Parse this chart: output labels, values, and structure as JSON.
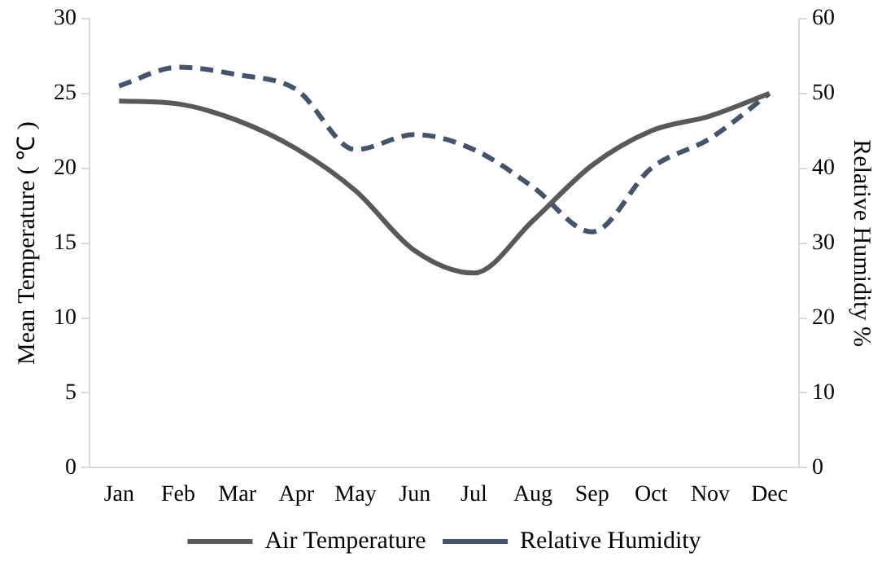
{
  "chart_data": {
    "type": "line",
    "ylabel": "Mean Temperature ( ℃ )",
    "y2label": "Relative Humidity %",
    "categories": [
      "Jan",
      "Feb",
      "Mar",
      "Apr",
      "May",
      "Jun",
      "Jul",
      "Aug",
      "Sep",
      "Oct",
      "Nov",
      "Dec"
    ],
    "series": [
      {
        "name": "Air Temperature",
        "color": "#595959",
        "line_style": "solid",
        "values": [
          24.5,
          24.3,
          23.2,
          21.3,
          18.5,
          14.5,
          13.0,
          16.5,
          20.2,
          22.5,
          23.5,
          25.0
        ]
      },
      {
        "name": "Relative Humidity",
        "color": "#44546a",
        "line_style": "dashed",
        "axis": "y2",
        "values": [
          51,
          53.5,
          52.5,
          50.5,
          42.5,
          44.5,
          42.5,
          37.5,
          31.5,
          40,
          44,
          50
        ]
      }
    ],
    "ylim": [
      0,
      30
    ],
    "yticks": [
      0,
      5,
      10,
      15,
      20,
      25,
      30
    ],
    "y2lim": [
      0,
      60
    ],
    "y2ticks": [
      0,
      10,
      20,
      30,
      40,
      50,
      60
    ],
    "grid": false,
    "legend": "bottom",
    "marker": "none"
  }
}
